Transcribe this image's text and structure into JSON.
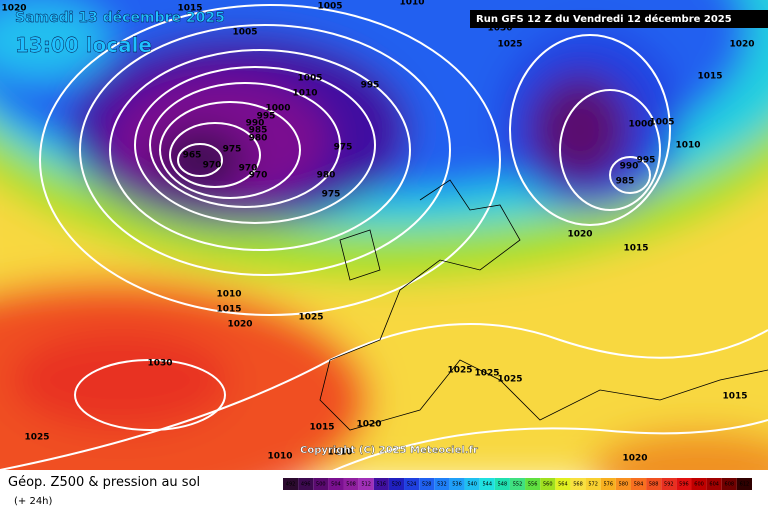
{
  "header": {
    "date": "Samedi 13 décembre 2025",
    "time": "13:00 locale",
    "run": "Run GFS 12 Z du Vendredi 12 décembre 2025"
  },
  "copyright": "Copyright (C) 2025 Meteociel.fr",
  "footer": {
    "title": "Géop. Z500 & pression au sol",
    "lead": "(+ 24h)"
  },
  "legend": {
    "values": [
      492,
      496,
      500,
      504,
      508,
      512,
      516,
      520,
      524,
      528,
      532,
      536,
      540,
      544,
      548,
      552,
      556,
      560,
      564,
      568,
      572,
      576,
      580,
      584,
      588,
      592,
      596,
      600,
      604,
      608,
      612
    ],
    "colors": [
      "#2b0a2e",
      "#3d0a50",
      "#5a0a70",
      "#7a1090",
      "#9020a0",
      "#a030b8",
      "#4010a0",
      "#2020c0",
      "#2040e0",
      "#2060f0",
      "#2080f8",
      "#20a0f8",
      "#20c0f0",
      "#20e0e0",
      "#20e0b0",
      "#40e080",
      "#60e040",
      "#a0e020",
      "#e0f020",
      "#f8e040",
      "#f8d030",
      "#f8b020",
      "#f89020",
      "#f87020",
      "#f05020",
      "#e83020",
      "#e01010",
      "#c00000",
      "#a00000",
      "#700000",
      "#300000"
    ]
  },
  "isobar_labels": [
    1020,
    1015,
    1005,
    1005,
    1010,
    1030,
    1025,
    1020,
    1015,
    1005,
    1010,
    995,
    1000,
    995,
    990,
    985,
    980,
    975,
    965,
    970,
    970,
    970,
    975,
    980,
    975,
    1000,
    1005,
    1010,
    995,
    990,
    985,
    1020,
    1015,
    1010,
    1015,
    1020,
    1025,
    1030,
    1025,
    1025,
    1025,
    1020,
    1015,
    1010,
    1010,
    1015,
    1020,
    1025
  ]
}
